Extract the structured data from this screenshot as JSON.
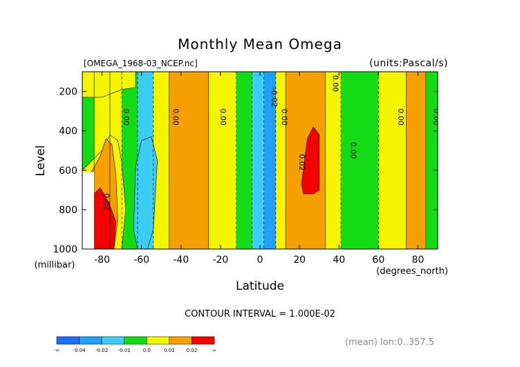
{
  "chart_data": {
    "type": "heatmap",
    "title": "Monthly Mean Omega",
    "file_label": "[OMEGA_1968-03_NCEP.nc]",
    "units_label": "(units:Pascal/s)",
    "xlabel": "Latitude",
    "ylabel": "Level",
    "x_unit": "(degrees_north)",
    "y_unit": "(millibar)",
    "xlim": [
      -90,
      90
    ],
    "ylim": [
      1000,
      100
    ],
    "x_ticks": [
      -80,
      -60,
      -40,
      -20,
      0,
      20,
      40,
      60,
      80
    ],
    "y_ticks": [
      200,
      400,
      600,
      800,
      1000
    ],
    "contour_interval_text": "CONTOUR INTERVAL = 1.000E-02",
    "footnote": "(mean) lon:0..357.5",
    "colorbar": {
      "colors": [
        "#1e6ef5",
        "#1ea0f5",
        "#3ccdf5",
        "#14dc14",
        "#f5f500",
        "#f5a000",
        "#f50000"
      ],
      "labels": [
        "-∞",
        "-0.04",
        "-0.02",
        "-0.01",
        "0.0",
        "0.01",
        "0.02",
        "∞"
      ]
    },
    "bands": [
      {
        "from": -90,
        "to": -84,
        "value": 0.0,
        "color": "#14dc14"
      },
      {
        "from": -84,
        "to": -76,
        "value": 0.01,
        "color": "#f5f500"
      },
      {
        "from": -76,
        "to": -70,
        "value": 0.01,
        "color": "#f5f500"
      },
      {
        "from": -70,
        "to": -62,
        "value": -0.005,
        "color": "#14dc14"
      },
      {
        "from": -62,
        "to": -54,
        "value": -0.015,
        "color": "#3ccdf5"
      },
      {
        "from": -54,
        "to": -46,
        "value": 0.0,
        "color": "#f5f500"
      },
      {
        "from": -46,
        "to": -26,
        "value": 0.015,
        "color": "#f5a000"
      },
      {
        "from": -26,
        "to": -12,
        "value": 0.0,
        "color": "#f5f500"
      },
      {
        "from": -12,
        "to": -4,
        "value": -0.005,
        "color": "#14dc14"
      },
      {
        "from": -4,
        "to": 2,
        "value": -0.015,
        "color": "#3ccdf5"
      },
      {
        "from": 2,
        "to": 8,
        "value": -0.03,
        "color": "#1ea0f5"
      },
      {
        "from": 8,
        "to": 13,
        "value": 0.0,
        "color": "#f5f500"
      },
      {
        "from": 13,
        "to": 33,
        "value": 0.015,
        "color": "#f5a000"
      },
      {
        "from": 33,
        "to": 41,
        "value": 0.0,
        "color": "#f5f500"
      },
      {
        "from": 41,
        "to": 60,
        "value": -0.005,
        "color": "#14dc14"
      },
      {
        "from": 60,
        "to": 74,
        "value": 0.0,
        "color": "#f5f500"
      },
      {
        "from": 74,
        "to": 84,
        "value": 0.015,
        "color": "#f5a000"
      },
      {
        "from": 84,
        "to": 90,
        "value": 0.0,
        "color": "#14dc14"
      }
    ],
    "regions": [
      {
        "value": 0.0,
        "color": "#f5f500",
        "points": [
          [
            -90,
            230
          ],
          [
            -80,
            230
          ],
          [
            -70,
            190
          ],
          [
            -63,
            180
          ],
          [
            -63,
            100
          ],
          [
            -90,
            100
          ]
        ]
      },
      {
        "value": 0.01,
        "color": "#f5f500",
        "points": [
          [
            -90,
            600
          ],
          [
            -86,
            560
          ],
          [
            -80,
            500
          ],
          [
            -76,
            420
          ],
          [
            -72,
            450
          ],
          [
            -70,
            560
          ],
          [
            -68,
            800
          ],
          [
            -70,
            1000
          ],
          [
            -90,
            1000
          ]
        ]
      },
      {
        "value": 0.015,
        "color": "#f5a000",
        "points": [
          [
            -90,
            650
          ],
          [
            -86,
            620
          ],
          [
            -81,
            530
          ],
          [
            -78,
            440
          ],
          [
            -75,
            470
          ],
          [
            -73,
            620
          ],
          [
            -72,
            850
          ],
          [
            -74,
            1000
          ],
          [
            -90,
            1000
          ]
        ]
      },
      {
        "value": 0.025,
        "color": "#f50000",
        "points": [
          [
            -84,
            720
          ],
          [
            -81,
            690
          ],
          [
            -79,
            720
          ],
          [
            -76,
            780
          ],
          [
            -73,
            860
          ],
          [
            -74,
            1000
          ],
          [
            -84,
            1000
          ]
        ]
      },
      {
        "value": 0.025,
        "color": "#f50000",
        "points": [
          [
            24,
            440
          ],
          [
            27,
            380
          ],
          [
            30,
            420
          ],
          [
            30,
            700
          ],
          [
            27,
            720
          ],
          [
            22,
            720
          ],
          [
            21,
            670
          ]
        ]
      },
      {
        "value": -0.015,
        "color": "#3ccdf5",
        "points": [
          [
            -63,
            580
          ],
          [
            -60,
            450
          ],
          [
            -55,
            430
          ],
          [
            -52,
            550
          ],
          [
            -54,
            900
          ],
          [
            -57,
            1000
          ],
          [
            -62,
            1000
          ],
          [
            -64,
            900
          ]
        ]
      }
    ],
    "masked": [
      {
        "from_x": -90,
        "to_x": -84,
        "from_y": 610,
        "to_y": 1000
      }
    ],
    "contour_labels": [
      {
        "text": "0.00",
        "x": -69,
        "y": 330
      },
      {
        "text": "0.00",
        "x": -44,
        "y": 330
      },
      {
        "text": "0.00",
        "x": -20,
        "y": 330
      },
      {
        "text": "-0.02",
        "x": 6,
        "y": 230
      },
      {
        "text": "0.00",
        "x": 11,
        "y": 330
      },
      {
        "text": "0.02",
        "x": 20,
        "y": 560
      },
      {
        "text": "0.00",
        "x": 37,
        "y": 160
      },
      {
        "text": "0.00",
        "x": 46,
        "y": 500
      },
      {
        "text": "0.00",
        "x": 70,
        "y": 330
      },
      {
        "text": "0.00",
        "x": 88,
        "y": 330
      },
      {
        "text": "0.02",
        "x": -79,
        "y": 760
      }
    ]
  }
}
